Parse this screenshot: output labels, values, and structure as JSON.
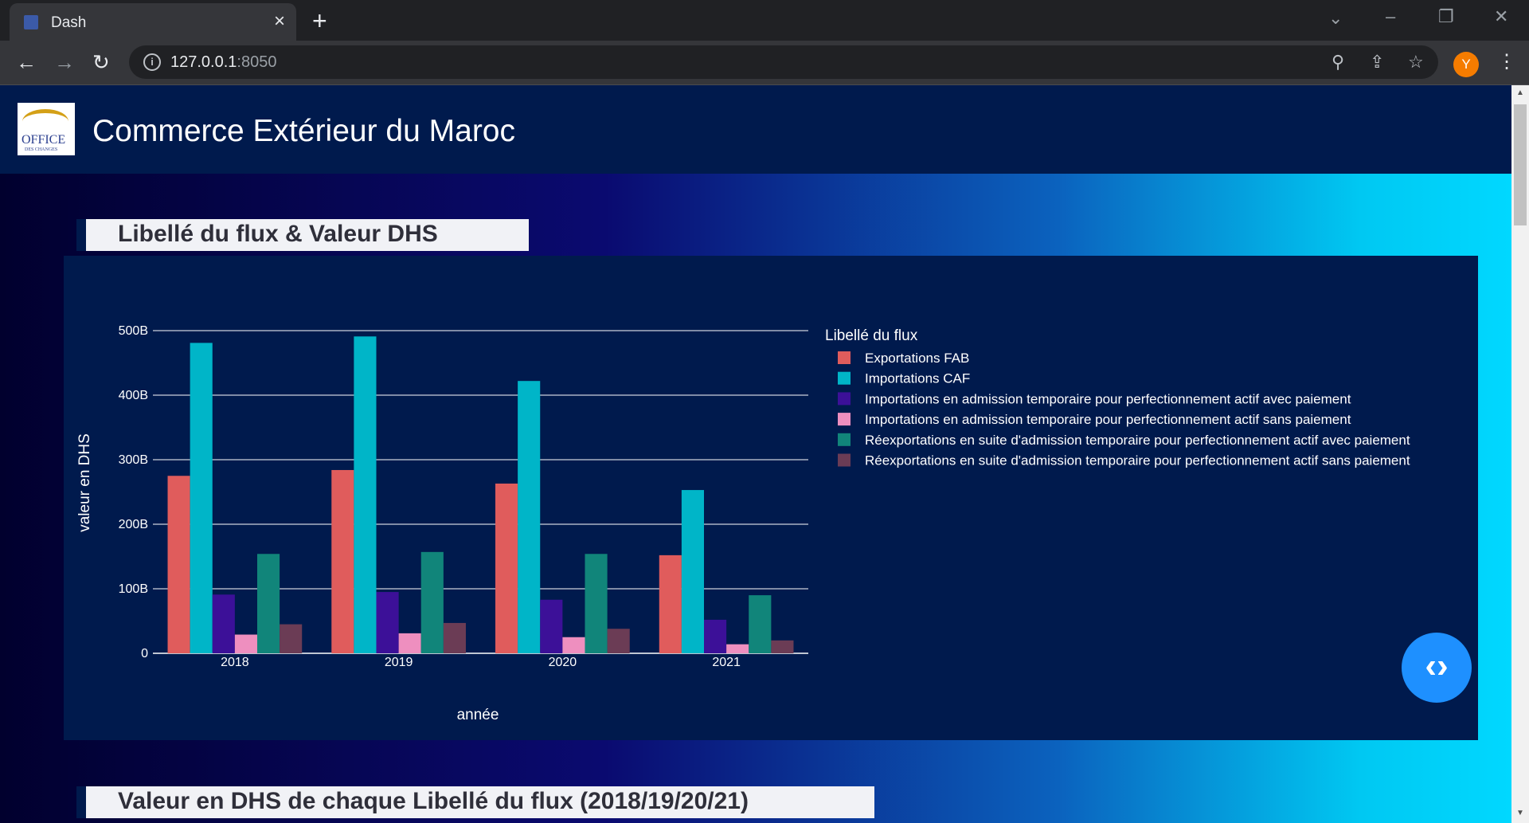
{
  "browser": {
    "tab_title": "Dash",
    "url_host": "127.0.0.1",
    "url_port": ":8050",
    "avatar_letter": "Y"
  },
  "header": {
    "logo_text": "OFFICE",
    "logo_subtext": "DES CHANGES",
    "title": "Commerce Extérieur du Maroc"
  },
  "sections": [
    {
      "title": "Libellé du flux & Valeur DHS"
    },
    {
      "title": "Valeur en DHS de chaque Libellé du flux (2018/19/20/21)"
    }
  ],
  "chart_data": {
    "type": "bar",
    "xlabel": "année",
    "ylabel": "valeur en DHS",
    "ylim": [
      0,
      500000000000
    ],
    "y_tick_labels": [
      "0",
      "100B",
      "200B",
      "300B",
      "400B",
      "500B"
    ],
    "categories": [
      "2018",
      "2019",
      "2020",
      "2021"
    ],
    "legend_title": "Libellé du flux",
    "legend_placement": "right",
    "grid": true,
    "series": [
      {
        "name": "Exportations FAB",
        "color": "#e05c5c",
        "values": [
          275000000000,
          284000000000,
          263000000000,
          152000000000
        ]
      },
      {
        "name": "Importations CAF",
        "color": "#00b5c8",
        "values": [
          481000000000,
          491000000000,
          422000000000,
          253000000000
        ]
      },
      {
        "name": "Importations en admission temporaire pour perfectionnement actif  avec paiement",
        "color": "#3c1098",
        "values": [
          91000000000,
          95000000000,
          83000000000,
          52000000000
        ]
      },
      {
        "name": "Importations en admission temporaire pour perfectionnement actif  sans paiement",
        "color": "#ee8fbf",
        "values": [
          29000000000,
          31000000000,
          25000000000,
          14000000000
        ]
      },
      {
        "name": "Réexportations en suite d'admission temporaire pour perfectionnement actif avec paiement",
        "color": "#11857a",
        "values": [
          154000000000,
          157000000000,
          154000000000,
          90000000000
        ]
      },
      {
        "name": "Réexportations en suite d'admission temporaire pour perfectionnement actif sans paiement",
        "color": "#6b3c55",
        "values": [
          45000000000,
          47000000000,
          38000000000,
          20000000000
        ]
      }
    ]
  }
}
